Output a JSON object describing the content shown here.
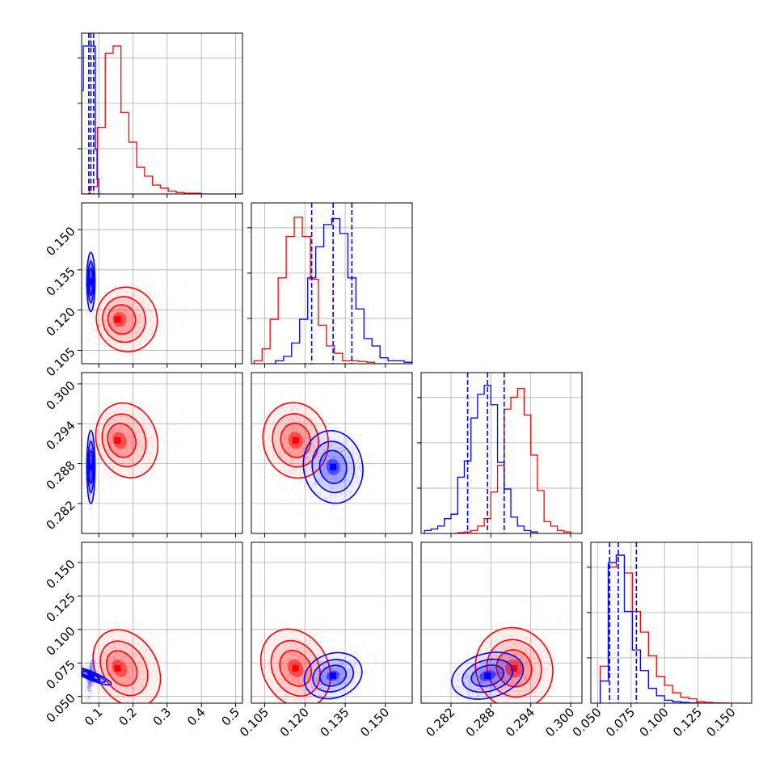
{
  "colors": {
    "series_a": "#ff0000",
    "series_b": "#0000ff",
    "grid": "#b0b0b0",
    "axes": "#000000"
  },
  "chart_data": {
    "type": "corner",
    "grid": true,
    "parameters": [
      {
        "range": [
          0.05,
          0.52
        ],
        "ticks": [
          0.1,
          0.2,
          0.3,
          0.4,
          0.5
        ],
        "tick_labels": [
          "0.1",
          "0.2",
          "0.3",
          "0.4",
          "0.5"
        ]
      },
      {
        "range": [
          0.1,
          0.16
        ],
        "ticks": [
          0.105,
          0.12,
          0.135,
          0.15
        ],
        "tick_labels": [
          "0.105",
          "0.120",
          "0.135",
          "0.150"
        ]
      },
      {
        "range": [
          0.2775,
          0.3017
        ],
        "ticks": [
          0.282,
          0.288,
          0.294,
          0.3
        ],
        "tick_labels": [
          "0.282",
          "0.288",
          "0.294",
          "0.300"
        ]
      },
      {
        "range": [
          0.045,
          0.165
        ],
        "ticks": [
          0.05,
          0.075,
          0.1,
          0.125,
          0.15
        ],
        "tick_labels": [
          "0.050",
          "0.075",
          "0.100",
          "0.125",
          "0.150"
        ]
      }
    ],
    "series": [
      {
        "color": "#ff0000",
        "center": [
          0.155,
          0.1165,
          0.2915,
          0.071
        ],
        "scale": [
          0.035,
          0.0055,
          0.0026,
          0.014
        ],
        "quantile_lines": [],
        "histograms": [
          {
            "edges": [
              0.05,
              0.073,
              0.096,
              0.119,
              0.142,
              0.165,
              0.188,
              0.211,
              0.234,
              0.257,
              0.28,
              0.303,
              0.326,
              0.35,
              0.4,
              0.5
            ],
            "counts": [
              0,
              0.05,
              0.45,
              0.95,
              1.0,
              0.55,
              0.35,
              0.18,
              0.12,
              0.06,
              0.04,
              0.02,
              0.01,
              0.005,
              0.0
            ]
          },
          {
            "edges": [
              0.101,
              0.104,
              0.107,
              0.11,
              0.113,
              0.116,
              0.119,
              0.122,
              0.125,
              0.128,
              0.131,
              0.134,
              0.137,
              0.14,
              0.143,
              0.146,
              0.149
            ],
            "counts": [
              0.02,
              0.1,
              0.3,
              0.58,
              0.86,
              0.99,
              0.86,
              0.57,
              0.26,
              0.12,
              0.07,
              0.02,
              0.02,
              0.015,
              0.01,
              0.0
            ]
          },
          {
            "edges": [
              0.282,
              0.283,
              0.284,
              0.285,
              0.286,
              0.287,
              0.288,
              0.289,
              0.29,
              0.291,
              0.292,
              0.293,
              0.294,
              0.295,
              0.296,
              0.297,
              0.298,
              0.299,
              0.3
            ],
            "counts": [
              0,
              0.005,
              0.01,
              0.02,
              0.05,
              0.1,
              0.28,
              0.46,
              0.84,
              0.92,
              0.98,
              0.8,
              0.53,
              0.29,
              0.08,
              0.05,
              0.02,
              0.01
            ]
          },
          {
            "edges": [
              0.052,
              0.058,
              0.064,
              0.07,
              0.076,
              0.082,
              0.088,
              0.094,
              0.1,
              0.106,
              0.112,
              0.118,
              0.124,
              0.13,
              0.136,
              0.142,
              0.148,
              0.16
            ],
            "counts": [
              0.25,
              0.92,
              1.0,
              0.88,
              0.62,
              0.48,
              0.32,
              0.18,
              0.12,
              0.07,
              0.04,
              0.03,
              0.01,
              0.005,
              0.002,
              0.001,
              0.0
            ]
          }
        ]
      },
      {
        "color": "#0000ff",
        "center": [
          0.077,
          0.1305,
          0.2875,
          0.0655
        ],
        "scale": [
          0.0055,
          0.005,
          0.0025,
          0.0075
        ],
        "quantile_lines": [
          [
            0.071,
            0.077,
            0.085
          ],
          [
            0.1225,
            0.1305,
            0.1375
          ],
          [
            0.2845,
            0.2875,
            0.29
          ],
          [
            0.059,
            0.0655,
            0.079
          ]
        ],
        "histograms": [
          {
            "edges": [
              0.05,
              0.055,
              0.06,
              0.065,
              0.07,
              0.075,
              0.08,
              0.085,
              0.09,
              0.095,
              0.1,
              0.11
            ],
            "counts": [
              0.7,
              1.0,
              1.0,
              1.0,
              1.0,
              1.0,
              1.0,
              1.0,
              0.3,
              0.1,
              0.0
            ]
          },
          {
            "edges": [
              0.106,
              0.109,
              0.112,
              0.115,
              0.118,
              0.121,
              0.124,
              0.127,
              0.13,
              0.133,
              0.136,
              0.139,
              0.142,
              0.145,
              0.148,
              0.151,
              0.154,
              0.157,
              0.16
            ],
            "counts": [
              0,
              0.02,
              0.05,
              0.14,
              0.3,
              0.58,
              0.79,
              0.94,
              0.98,
              0.88,
              0.58,
              0.37,
              0.17,
              0.12,
              0.04,
              0.02,
              0.02,
              0.01
            ]
          },
          {
            "edges": [
              0.278,
              0.279,
              0.28,
              0.281,
              0.282,
              0.283,
              0.284,
              0.285,
              0.286,
              0.287,
              0.288,
              0.289,
              0.29,
              0.291,
              0.292,
              0.293,
              0.294,
              0.295
            ],
            "counts": [
              0.02,
              0.03,
              0.05,
              0.1,
              0.13,
              0.38,
              0.49,
              0.78,
              0.94,
              1.0,
              0.87,
              0.48,
              0.3,
              0.11,
              0.05,
              0.02,
              0.01
            ]
          },
          {
            "edges": [
              0.052,
              0.058,
              0.064,
              0.07,
              0.076,
              0.082,
              0.088,
              0.094,
              0.1,
              0.106,
              0.112,
              0.118,
              0.124,
              0.13
            ],
            "counts": [
              0.15,
              0.95,
              1.0,
              0.62,
              0.36,
              0.22,
              0.1,
              0.05,
              0.02,
              0.01,
              0.005,
              0.002,
              0.0
            ]
          }
        ]
      }
    ]
  }
}
